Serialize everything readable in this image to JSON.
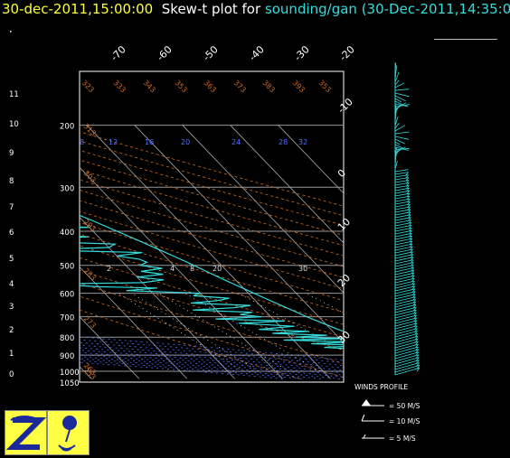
{
  "header": {
    "timestamp": "30-dec-2011,15:00:00",
    "label": "Skew-t plot for",
    "source": "sounding/gan (30-Dec-2011,14:35:00"
  },
  "colors": {
    "temperature": "#33dddd",
    "dewpoint": "#33dddd",
    "grid": "#999999",
    "isotherm": "#aaaaaa",
    "dry_adiabat": "#d2691e",
    "wet_adiabat": "#4f6fff",
    "mixing_ratio": "#ffffff",
    "header_time": "#ffff33"
  },
  "chart_data": {
    "type": "skew-t",
    "pressure_levels": [
      200,
      300,
      400,
      500,
      600,
      700,
      800,
      900,
      1000
    ],
    "pressure_bottom_label": "1050",
    "height_km_labels": [
      "11",
      "10",
      "9",
      "8",
      "7",
      "6",
      "5",
      "4",
      "3",
      "2",
      "1",
      "0"
    ],
    "isotherm_top_labels": [
      "-70",
      "-60",
      "-50",
      "-40",
      "-30",
      "-20"
    ],
    "isotherm_right_labels": [
      "-10",
      "0",
      "10",
      "20",
      "30"
    ],
    "dry_adiabat_labels": [
      "323",
      "333",
      "343",
      "353",
      "363",
      "373",
      "383",
      "393",
      "353",
      "313",
      "303",
      "293",
      "283",
      "273",
      "263",
      "253"
    ],
    "wet_adiabat_labels": [
      "8",
      "12",
      "16",
      "20",
      "24",
      "28",
      "32"
    ],
    "mixing_ratio_labels": [
      "2",
      "4",
      "8",
      "20",
      "30"
    ],
    "temperature_profile": [
      [
        1000,
        27
      ],
      [
        990,
        26.5
      ],
      [
        975,
        25.5
      ],
      [
        950,
        24
      ],
      [
        925,
        22.5
      ],
      [
        900,
        21
      ],
      [
        875,
        19.3
      ],
      [
        850,
        17.6
      ],
      [
        825,
        16
      ],
      [
        800,
        14.3
      ],
      [
        775,
        12.5
      ],
      [
        750,
        10.8
      ],
      [
        725,
        9.2
      ],
      [
        700,
        7.5
      ],
      [
        675,
        6
      ],
      [
        650,
        4.4
      ],
      [
        625,
        2.8
      ],
      [
        600,
        1.2
      ],
      [
        575,
        -0.5
      ],
      [
        550,
        -2.3
      ],
      [
        525,
        -4
      ],
      [
        500,
        -5.8
      ],
      [
        475,
        -7.8
      ],
      [
        450,
        -10
      ],
      [
        425,
        -12.4
      ],
      [
        400,
        -15
      ],
      [
        375,
        -17.8
      ],
      [
        350,
        -21
      ],
      [
        325,
        -24.5
      ],
      [
        300,
        -28.5
      ],
      [
        275,
        -33
      ],
      [
        250,
        -38
      ],
      [
        225,
        -44
      ],
      [
        200,
        -52
      ]
    ],
    "dewpoint_profile": [
      [
        1000,
        23
      ],
      [
        990,
        22
      ],
      [
        975,
        21
      ],
      [
        950,
        20.5
      ],
      [
        940,
        19.5
      ],
      [
        925,
        19
      ],
      [
        915,
        17
      ],
      [
        900,
        18
      ],
      [
        885,
        12
      ],
      [
        870,
        14
      ],
      [
        855,
        5
      ],
      [
        845,
        15
      ],
      [
        835,
        3
      ],
      [
        825,
        12
      ],
      [
        815,
        -2
      ],
      [
        808,
        11
      ],
      [
        800,
        1
      ],
      [
        790,
        8
      ],
      [
        780,
        -3
      ],
      [
        770,
        5
      ],
      [
        760,
        -5
      ],
      [
        745,
        3
      ],
      [
        730,
        -8
      ],
      [
        720,
        2
      ],
      [
        710,
        -12
      ],
      [
        700,
        -2
      ],
      [
        690,
        -6
      ],
      [
        680,
        -3
      ],
      [
        670,
        -15
      ],
      [
        660,
        -6
      ],
      [
        650,
        -2
      ],
      [
        640,
        -14
      ],
      [
        630,
        -8
      ],
      [
        620,
        -5
      ],
      [
        610,
        -12
      ],
      [
        600,
        -10
      ],
      [
        590,
        -25
      ],
      [
        580,
        -18
      ],
      [
        575,
        -30
      ],
      [
        565,
        -40
      ],
      [
        560,
        -20
      ],
      [
        550,
        -15
      ],
      [
        540,
        -20
      ],
      [
        530,
        -14
      ],
      [
        520,
        -18
      ],
      [
        510,
        -13
      ],
      [
        500,
        -17
      ],
      [
        490,
        -15
      ],
      [
        480,
        -16
      ],
      [
        470,
        -20
      ],
      [
        460,
        -14
      ],
      [
        452,
        -36
      ],
      [
        445,
        -20
      ],
      [
        435,
        -18
      ],
      [
        425,
        -40
      ],
      [
        415,
        -22
      ],
      [
        405,
        -35
      ],
      [
        395,
        -45
      ],
      [
        390,
        -20
      ],
      [
        382,
        -35
      ],
      [
        375,
        -46
      ],
      [
        368,
        -30
      ],
      [
        360,
        -35
      ],
      [
        352,
        -38
      ],
      [
        345,
        -43
      ],
      [
        338,
        -22
      ],
      [
        330,
        -28
      ],
      [
        320,
        -23
      ],
      [
        310,
        -29
      ],
      [
        300,
        -26
      ],
      [
        295,
        -30
      ],
      [
        285,
        -27
      ],
      [
        275,
        -33
      ],
      [
        265,
        -29
      ],
      [
        255,
        -37
      ],
      [
        245,
        -34
      ],
      [
        235,
        -41
      ],
      [
        225,
        -38
      ],
      [
        215,
        -45
      ],
      [
        205,
        -48
      ],
      [
        200,
        -49
      ]
    ],
    "winds_profile": {
      "title": "WINDS PROFILE",
      "legend": [
        "= 50 M/S",
        "= 10 M/S",
        "= 5 M/S"
      ]
    }
  }
}
